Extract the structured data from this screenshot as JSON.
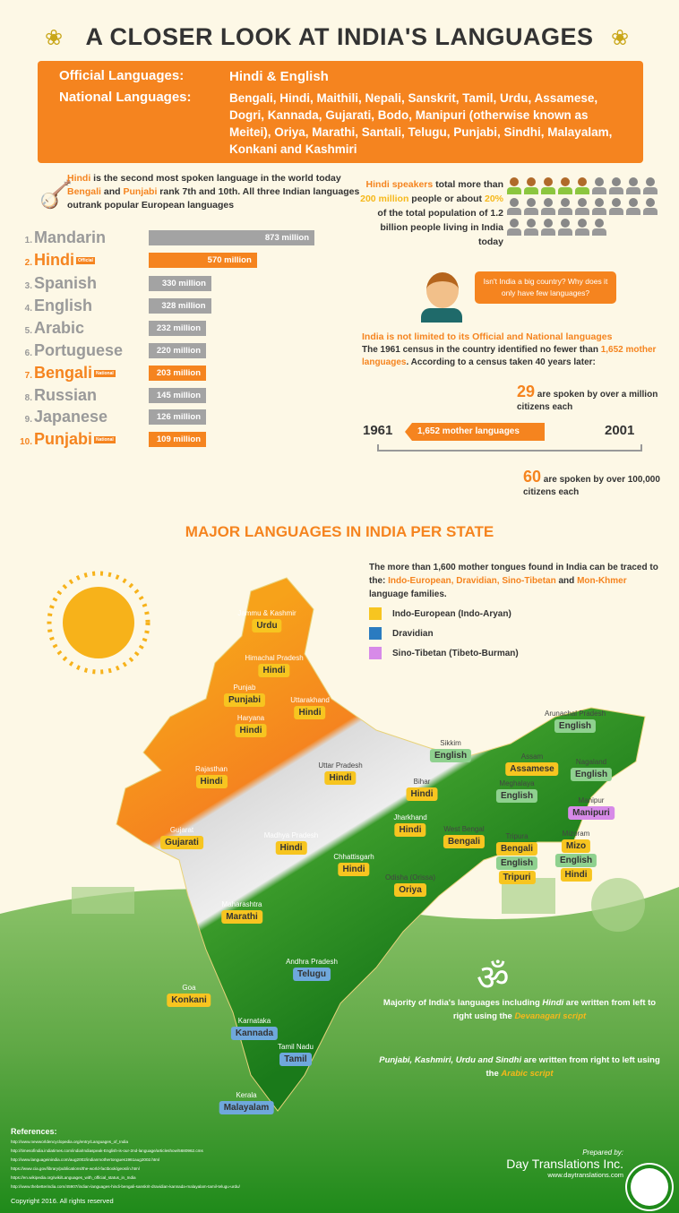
{
  "title": "A CLOSER LOOK AT INDIA'S LANGUAGES",
  "banner": {
    "official_label": "Official Languages:",
    "official_value": "Hindi & English",
    "national_label": "National Languages:",
    "national_value": "Bengali, Hindi, Maithili, Nepali, Sanskrit, Tamil, Urdu, Assamese, Dogri, Kannada, Gujarati, Bodo, Manipuri (otherwise known as Meitei), Oriya, Marathi, Santali, Telugu, Punjabi, Sindhi, Malayalam, Konkani and Kashmiri"
  },
  "intro": {
    "hindi": "Hindi",
    "t1": " is the second most spoken language in the world today ",
    "bengali": "Bengali",
    "t2": " and ",
    "punjabi": "Punjabi",
    "t3": " rank 7th and 10th. All three Indian languages outrank popular European languages"
  },
  "chart_data": {
    "type": "bar",
    "orientation": "horizontal",
    "unit": "million",
    "categories": [
      "Mandarin",
      "Hindi",
      "Spanish",
      "English",
      "Arabic",
      "Portuguese",
      "Bengali",
      "Russian",
      "Japanese",
      "Punjabi"
    ],
    "values": [
      873,
      570,
      330,
      328,
      232,
      220,
      203,
      145,
      126,
      109
    ],
    "labels": [
      "873 million",
      "570 million",
      "330 million",
      "328 million",
      "232 million",
      "220 million",
      "203 million",
      "145 million",
      "126 million",
      "109 million"
    ],
    "ranks": [
      "1.",
      "2.",
      "3.",
      "4.",
      "5.",
      "6.",
      "7.",
      "8.",
      "9.",
      "10."
    ],
    "badges": [
      "",
      "Official",
      "",
      "",
      "",
      "",
      "National",
      "",
      "",
      "National"
    ],
    "highlight": [
      false,
      true,
      false,
      false,
      false,
      false,
      true,
      false,
      false,
      true
    ],
    "colors": {
      "default": "#a3a3a3",
      "highlight": "#f5841f"
    }
  },
  "pictogram": {
    "total_figures": 24,
    "highlighted_figures": 5,
    "t1": "Hindi speakers",
    "t2": " total more than ",
    "t3": "200 million",
    "t4": " people or about ",
    "t5": "20%",
    "t6": " of the total population of 1.2 billion people living in India today"
  },
  "bubble": "Isn't India a big country? Why does it only have few languages?",
  "census": {
    "heading": "India is not limited to its Official and National languages",
    "t1": "The 1961 census in the country identified no fewer than ",
    "t2": "1,652 mother languages",
    "t3": ". According to a census taken 40 years later:",
    "n29": "29",
    "n29_text": " are spoken by over a million citizens each",
    "year_start": "1961",
    "year_end": "2001",
    "arrow": "1,652 mother languages",
    "n60": "60",
    "n60_text": " are spoken by over 100,000 citizens each"
  },
  "map_section": {
    "title": "MAJOR LANGUAGES IN INDIA PER STATE",
    "t1": "The more than 1,600 mother tongues found in India can be traced to the: ",
    "t2": "Indo-European, Dravidian, Sino-Tibetan",
    "t3": " and ",
    "t4": "Mon-Khmer",
    "t5": " language families.",
    "legend": [
      {
        "label": "Indo-European (Indo-Aryan)",
        "color": "#f7c520"
      },
      {
        "label": "Dravidian",
        "color": "#2a7bc0"
      },
      {
        "label": "Sino-Tibetan (Tibeto-Burman)",
        "color": "#d78ae8"
      }
    ]
  },
  "states": [
    {
      "name": "Jammu & Kashmir",
      "langs": [
        {
          "l": "Urdu",
          "f": "ie"
        }
      ]
    },
    {
      "name": "Himachal Pradesh",
      "langs": [
        {
          "l": "Hindi",
          "f": "ie"
        }
      ]
    },
    {
      "name": "Punjab",
      "langs": [
        {
          "l": "Punjabi",
          "f": "ie"
        }
      ]
    },
    {
      "name": "Uttarakhand",
      "langs": [
        {
          "l": "Hindi",
          "f": "ie"
        }
      ]
    },
    {
      "name": "Haryana",
      "langs": [
        {
          "l": "Hindi",
          "f": "ie"
        }
      ]
    },
    {
      "name": "Rajasthan",
      "langs": [
        {
          "l": "Hindi",
          "f": "ie"
        }
      ]
    },
    {
      "name": "Uttar Pradesh",
      "langs": [
        {
          "l": "Hindi",
          "f": "ie"
        }
      ]
    },
    {
      "name": "Bihar",
      "langs": [
        {
          "l": "Hindi",
          "f": "ie"
        }
      ]
    },
    {
      "name": "Sikkim",
      "langs": [
        {
          "l": "English",
          "f": "en"
        }
      ]
    },
    {
      "name": "Arunachal Pradesh",
      "langs": [
        {
          "l": "English",
          "f": "en"
        }
      ]
    },
    {
      "name": "Assam",
      "langs": [
        {
          "l": "Assamese",
          "f": "ie"
        }
      ]
    },
    {
      "name": "Nagaland",
      "langs": [
        {
          "l": "English",
          "f": "en"
        }
      ]
    },
    {
      "name": "Meghalaya",
      "langs": [
        {
          "l": "English",
          "f": "en"
        }
      ]
    },
    {
      "name": "Manipur",
      "langs": [
        {
          "l": "Manipuri",
          "f": "st2"
        }
      ]
    },
    {
      "name": "Gujarat",
      "langs": [
        {
          "l": "Gujarati",
          "f": "ie"
        }
      ]
    },
    {
      "name": "Madhya Pradesh",
      "langs": [
        {
          "l": "Hindi",
          "f": "ie"
        }
      ]
    },
    {
      "name": "Jharkhand",
      "langs": [
        {
          "l": "Hindi",
          "f": "ie"
        }
      ]
    },
    {
      "name": "West Bengal",
      "langs": [
        {
          "l": "Bengali",
          "f": "ie"
        }
      ]
    },
    {
      "name": "Tripura",
      "langs": [
        {
          "l": "Bengali",
          "f": "ie"
        },
        {
          "l": "English",
          "f": "en"
        },
        {
          "l": "Tripuri",
          "f": "ie"
        }
      ]
    },
    {
      "name": "Mizoram",
      "langs": [
        {
          "l": "Mizo",
          "f": "ie"
        },
        {
          "l": "English",
          "f": "en"
        },
        {
          "l": "Hindi",
          "f": "ie"
        }
      ]
    },
    {
      "name": "Chhattisgarh",
      "langs": [
        {
          "l": "Hindi",
          "f": "ie"
        }
      ]
    },
    {
      "name": "Odisha (Orissa)",
      "langs": [
        {
          "l": "Oriya",
          "f": "ie"
        }
      ]
    },
    {
      "name": "Maharashtra",
      "langs": [
        {
          "l": "Marathi",
          "f": "ie"
        }
      ]
    },
    {
      "name": "Andhra Pradesh",
      "langs": [
        {
          "l": "Telugu",
          "f": "dr"
        }
      ]
    },
    {
      "name": "Goa",
      "langs": [
        {
          "l": "Konkani",
          "f": "ie"
        }
      ]
    },
    {
      "name": "Karnataka",
      "langs": [
        {
          "l": "Kannada",
          "f": "dr"
        }
      ]
    },
    {
      "name": "Tamil Nadu",
      "langs": [
        {
          "l": "Tamil",
          "f": "dr"
        }
      ]
    },
    {
      "name": "Kerala",
      "langs": [
        {
          "l": "Malayalam",
          "f": "dr"
        }
      ]
    }
  ],
  "scripts": {
    "d1": "Majority of India's languages including ",
    "d2": "Hindi",
    "d3": " are written from left to right using the ",
    "d4": "Devanagari script",
    "a1": "Punjabi, Kashmiri, Urdu and Sindhi",
    "a2": " are written from right to left using the ",
    "a3": "Arabic script"
  },
  "references": {
    "title": "References:",
    "items": [
      "http://www.newworldencyclopedia.org/entry/Languages_of_India",
      "http://timesofindia.indiatimes.com/india/Indiaspeak-English-is-our-2nd-language/articleshow/5680962.cms",
      "http://www.languageinindia.com/aug2002/indianmothertongues1961aug2002.html",
      "https://www.cia.gov/library/publications/the-world-factbook/geos/in.html",
      "https://en.wikipedia.org/wiki/Languages_with_official_status_in_India",
      "http://www.thebetterindia.com/45907/indian-languages-hindi-bengali-sanskrit-dravidian-kannada-malayalam-tamil-telugu-urdu/"
    ],
    "copyright": "Copyright 2016. All rights reserved"
  },
  "credit": {
    "prepared": "Prepared by:",
    "company": "Day Translations Inc.",
    "url": "www.daytranslations.com"
  }
}
